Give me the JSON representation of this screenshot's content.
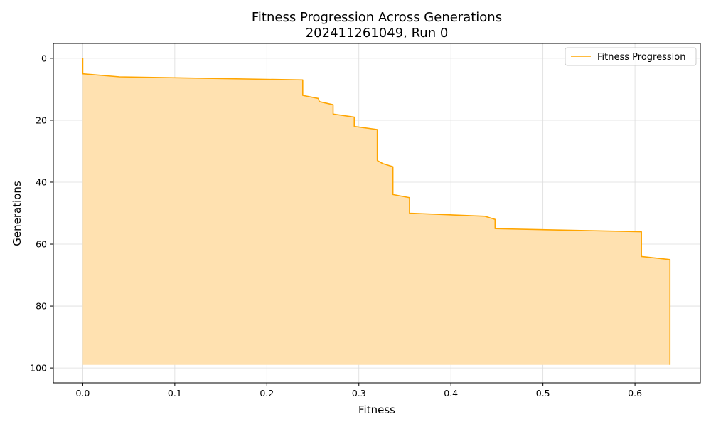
{
  "chart_data": {
    "type": "area",
    "title_line1": "Fitness Progression Across Generations",
    "title_line2": "202411261049, Run 0",
    "xlabel": "Fitness",
    "ylabel": "Generations",
    "xlim": [
      -0.032,
      0.671
    ],
    "ylim": [
      104.8,
      -4.8
    ],
    "y_inverted": true,
    "x_ticks": [
      0.0,
      0.1,
      0.2,
      0.3,
      0.4,
      0.5,
      0.6
    ],
    "x_tick_labels": [
      "0.0",
      "0.1",
      "0.2",
      "0.3",
      "0.4",
      "0.5",
      "0.6"
    ],
    "y_ticks": [
      0,
      20,
      40,
      60,
      80,
      100
    ],
    "y_tick_labels": [
      "0",
      "20",
      "40",
      "60",
      "80",
      "100"
    ],
    "grid": true,
    "legend_position": "top-right",
    "series": [
      {
        "name": "Fitness Progression",
        "color": "#ffa500",
        "fill_color": "#ffe1b0",
        "points": [
          [
            0.0,
            0
          ],
          [
            0.0,
            5
          ],
          [
            0.04,
            6
          ],
          [
            0.239,
            7
          ],
          [
            0.239,
            12
          ],
          [
            0.256,
            13
          ],
          [
            0.257,
            14
          ],
          [
            0.272,
            15
          ],
          [
            0.272,
            18
          ],
          [
            0.295,
            19
          ],
          [
            0.295,
            22
          ],
          [
            0.32,
            23
          ],
          [
            0.32,
            33
          ],
          [
            0.326,
            34
          ],
          [
            0.337,
            35
          ],
          [
            0.337,
            44
          ],
          [
            0.355,
            45
          ],
          [
            0.355,
            50
          ],
          [
            0.437,
            51
          ],
          [
            0.448,
            52
          ],
          [
            0.448,
            55
          ],
          [
            0.607,
            56
          ],
          [
            0.607,
            64
          ],
          [
            0.638,
            65
          ],
          [
            0.638,
            99
          ]
        ]
      }
    ]
  }
}
